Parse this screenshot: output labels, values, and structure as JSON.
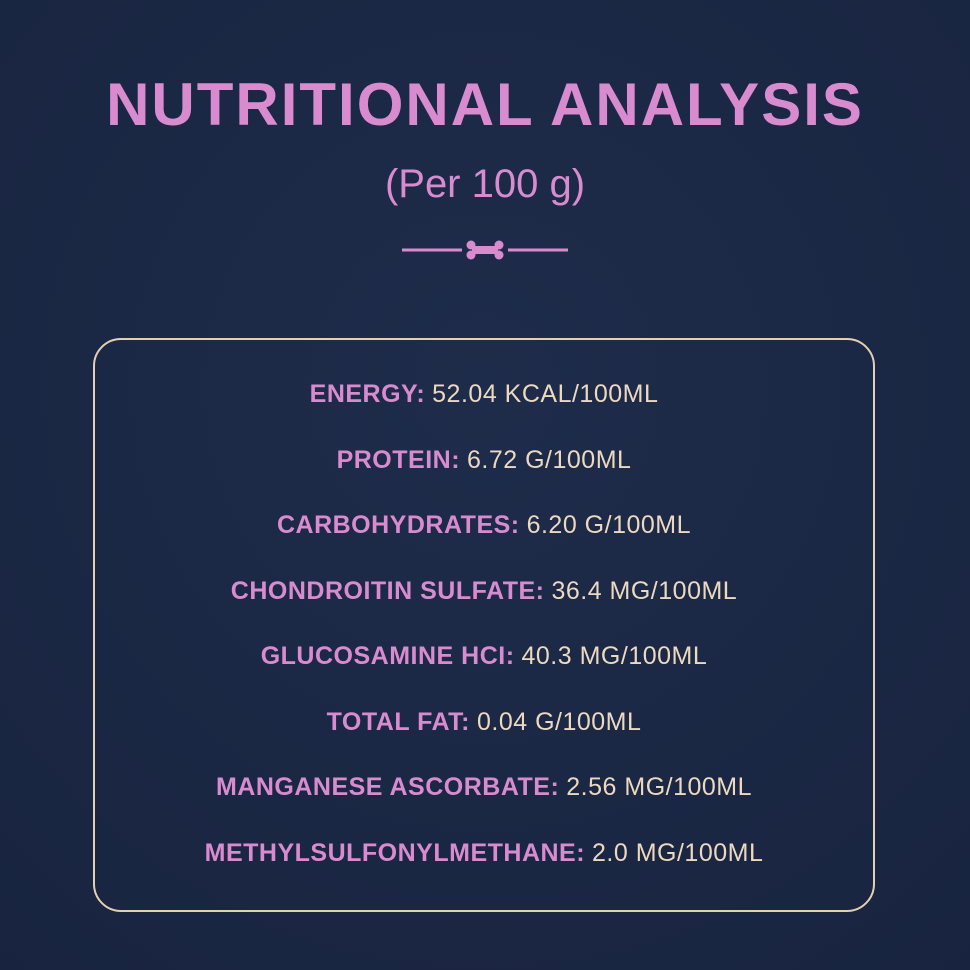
{
  "header": {
    "title": "NUTRITIONAL ANALYSIS",
    "subtitle": "(Per 100 g)"
  },
  "items": [
    {
      "label": "ENERGY:",
      "value": "52.04 KCAL/100ML"
    },
    {
      "label": "PROTEIN:",
      "value": "6.72 G/100ML"
    },
    {
      "label": "CARBOHYDRATES:",
      "value": "6.20 G/100ML"
    },
    {
      "label": "CHONDROITIN SULFATE:",
      "value": "36.4 MG/100ML"
    },
    {
      "label": "GLUCOSAMINE HCI:",
      "value": "40.3 MG/100ML"
    },
    {
      "label": "TOTAL FAT:",
      "value": "0.04 G/100ML"
    },
    {
      "label": "MANGANESE ASCORBATE:",
      "value": "2.56 MG/100ML"
    },
    {
      "label": "METHYLSULFONYLMETHANE:",
      "value": "2.0 MG/100ML"
    }
  ]
}
